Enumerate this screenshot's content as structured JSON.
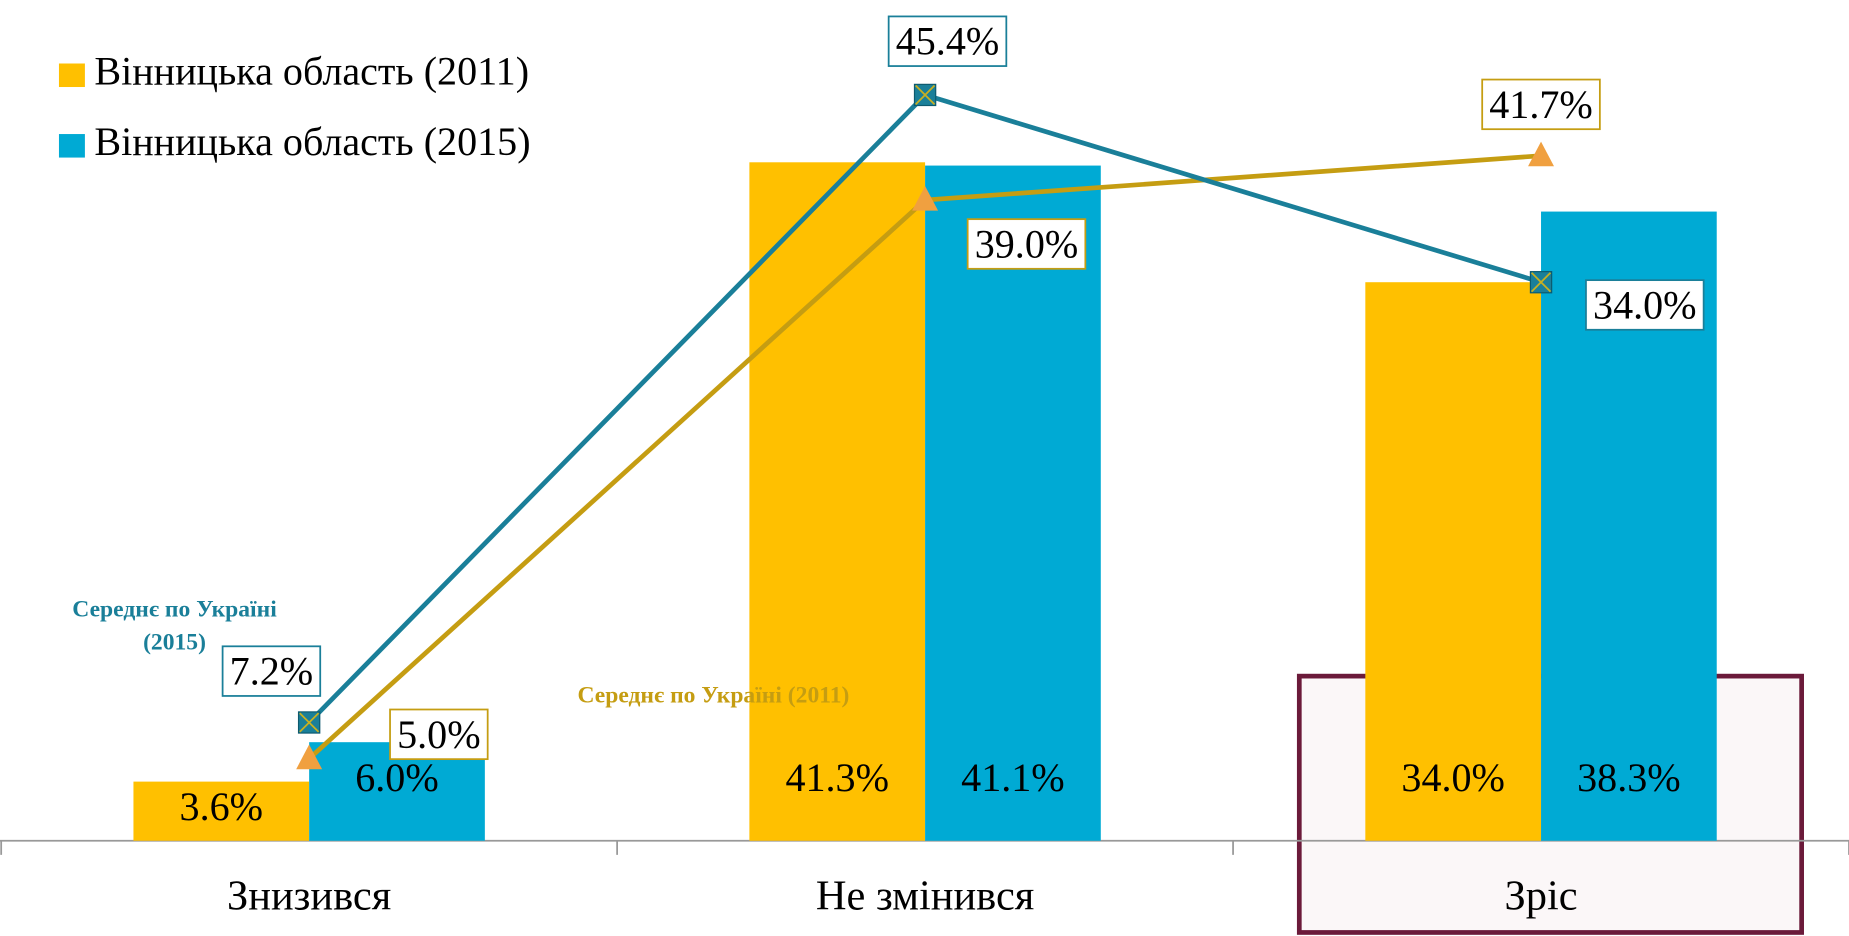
{
  "chart_data": {
    "type": "bar",
    "categories": [
      "Знизився",
      "Не змінився",
      "Зріс"
    ],
    "ylim": [
      0,
      51
    ],
    "highlight_category": 2,
    "series": [
      {
        "name": "Вінницька область (2011)",
        "type": "bar",
        "color": "#ffc000",
        "values": [
          3.6,
          41.3,
          34.0
        ],
        "value_labels": [
          "3.6%",
          "41.3%",
          "34.0%"
        ]
      },
      {
        "name": "Вінницька область (2015)",
        "type": "bar",
        "color": "#00aad4",
        "values": [
          6.0,
          41.1,
          38.3
        ],
        "value_labels": [
          "6.0%",
          "41.1%",
          "38.3%"
        ]
      },
      {
        "name": "Середнє по Україні (2011)",
        "type": "line",
        "color": "#c59d12",
        "marker": "triangle",
        "marker_color": "#f0a040",
        "values": [
          5.0,
          39.0,
          41.7
        ],
        "value_labels": [
          "5.0%",
          "39.0%",
          "41.7%"
        ]
      },
      {
        "name": "Середнє по Україні (2015)",
        "type": "line",
        "color": "#1a7f99",
        "marker": "square",
        "marker_color": "#1a7f99",
        "values": [
          7.2,
          45.4,
          34.0
        ],
        "value_labels": [
          "7.2%",
          "45.4%",
          "34.0%"
        ]
      }
    ]
  }
}
